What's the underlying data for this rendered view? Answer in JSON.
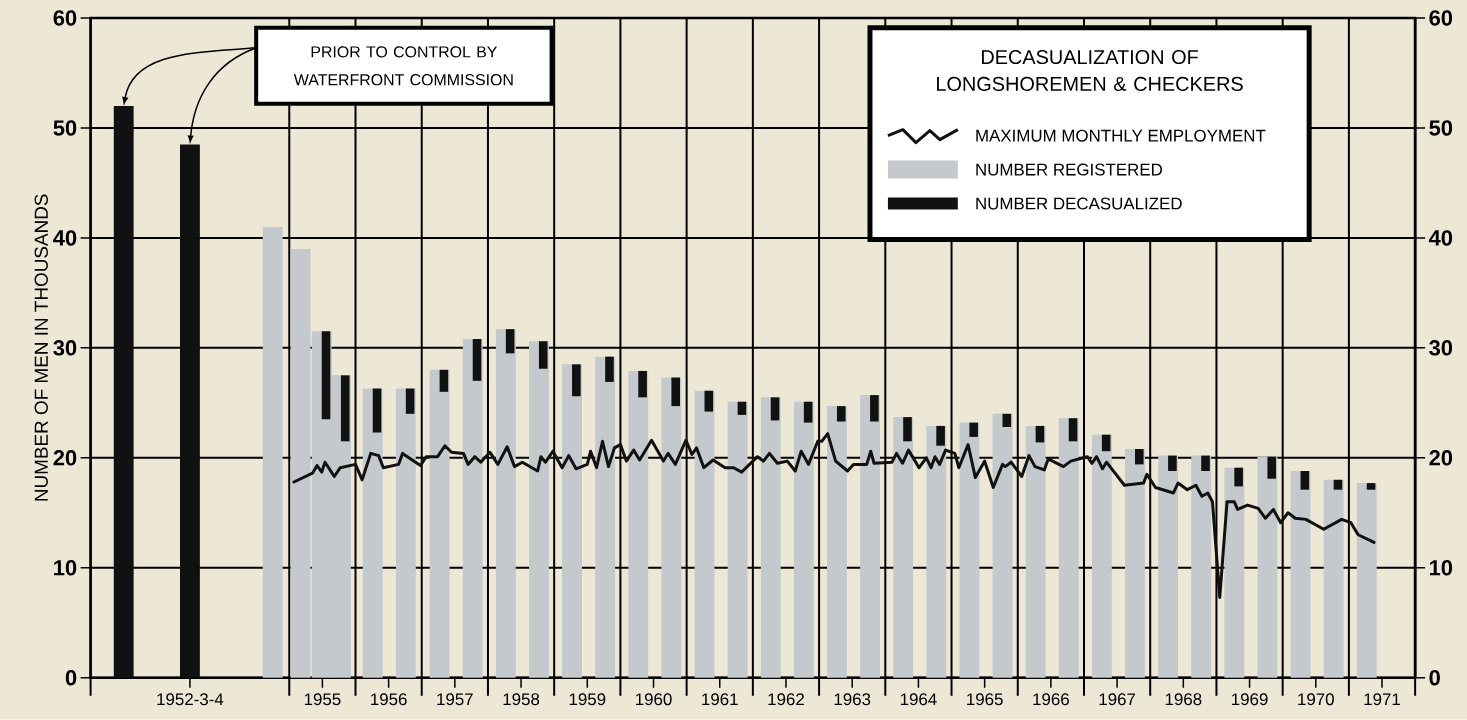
{
  "chart_data": {
    "type": "bar",
    "ylabel": "NUMBER OF MEN IN THOUSANDS",
    "legend_title": "DECASUALIZATION OF LONGSHOREMEN & CHECKERS",
    "annotations": [
      "PRIOR TO CONTROL BY WATERFRONT COMMISSION"
    ],
    "xlim": [
      1952,
      1972
    ],
    "xticks": [
      {
        "value": 1952,
        "label": null
      },
      {
        "value": 1955,
        "label": null
      },
      {
        "value": 1956,
        "label": null
      },
      {
        "value": 1957,
        "label": null
      },
      {
        "value": 1958,
        "label": null
      },
      {
        "value": 1959,
        "label": null
      },
      {
        "value": 1960,
        "label": null
      },
      {
        "value": 1961,
        "label": null
      },
      {
        "value": 1962,
        "label": null
      },
      {
        "value": 1963,
        "label": null
      },
      {
        "value": 1964,
        "label": null
      },
      {
        "value": 1965,
        "label": null
      },
      {
        "value": 1966,
        "label": null
      },
      {
        "value": 1967,
        "label": null
      },
      {
        "value": 1968,
        "label": null
      },
      {
        "value": 1969,
        "label": null
      },
      {
        "value": 1970,
        "label": null
      },
      {
        "value": 1971,
        "label": null
      },
      {
        "value": 1972,
        "label": null
      },
      {
        "value": 1953.5,
        "label": "1952-3-4"
      },
      {
        "value": 1955.5,
        "label": "1955"
      },
      {
        "value": 1956.5,
        "label": "1956"
      },
      {
        "value": 1957.5,
        "label": "1957"
      },
      {
        "value": 1958.5,
        "label": "1958"
      },
      {
        "value": 1959.5,
        "label": "1959"
      },
      {
        "value": 1960.5,
        "label": "1960"
      },
      {
        "value": 1961.5,
        "label": "1961"
      },
      {
        "value": 1962.5,
        "label": "1962"
      },
      {
        "value": 1963.5,
        "label": "1963"
      },
      {
        "value": 1964.5,
        "label": "1964"
      },
      {
        "value": 1965.5,
        "label": "1965"
      },
      {
        "value": 1966.5,
        "label": "1966"
      },
      {
        "value": 1967.5,
        "label": "1967"
      },
      {
        "value": 1968.5,
        "label": "1968"
      },
      {
        "value": 1969.5,
        "label": "1969"
      },
      {
        "value": 1970.5,
        "label": "1970"
      },
      {
        "value": 1971.5,
        "label": "1971"
      }
    ],
    "ylim": [
      0,
      60
    ],
    "yticks": [
      0,
      10,
      20,
      30,
      40,
      50,
      60
    ],
    "y2lim": [
      0,
      60
    ],
    "y2ticks": [
      0,
      10,
      20,
      30,
      40,
      50,
      60
    ],
    "grid": true,
    "legend": "top right",
    "series": [
      {
        "name": "MAXIMUM MONTHLY EMPLOYMENT",
        "type": "line",
        "color": "#111111",
        "x": [
          1955.07,
          1955.35,
          1955.42,
          1955.49,
          1955.54,
          1955.68,
          1955.77,
          1956.0,
          1956.1,
          1956.23,
          1956.35,
          1956.42,
          1956.65,
          1956.71,
          1956.98,
          1957.07,
          1957.24,
          1957.35,
          1957.45,
          1957.63,
          1957.7,
          1957.8,
          1957.89,
          1958.03,
          1958.15,
          1958.29,
          1958.4,
          1958.52,
          1958.75,
          1958.8,
          1958.87,
          1958.98,
          1959.12,
          1959.22,
          1959.33,
          1959.5,
          1959.55,
          1959.64,
          1959.73,
          1959.82,
          1959.91,
          1960.0,
          1960.09,
          1960.2,
          1960.29,
          1960.47,
          1960.65,
          1960.72,
          1960.83,
          1960.99,
          1961.08,
          1961.15,
          1961.26,
          1961.4,
          1961.58,
          1961.71,
          1961.83,
          1962.07,
          1962.16,
          1962.25,
          1962.37,
          1962.52,
          1962.64,
          1962.73,
          1962.84,
          1962.98,
          1963.04,
          1963.13,
          1963.25,
          1963.43,
          1963.52,
          1963.72,
          1963.78,
          1963.83,
          1964.1,
          1964.17,
          1964.26,
          1964.35,
          1964.51,
          1964.62,
          1964.69,
          1964.75,
          1964.82,
          1964.91,
          1965.05,
          1965.11,
          1965.25,
          1965.36,
          1965.5,
          1965.63,
          1965.77,
          1965.81,
          1965.9,
          1966.06,
          1966.17,
          1966.26,
          1966.4,
          1966.46,
          1966.69,
          1966.8,
          1967.05,
          1967.12,
          1967.19,
          1967.28,
          1967.34,
          1967.61,
          1967.9,
          1967.95,
          1968.08,
          1968.35,
          1968.42,
          1968.56,
          1968.69,
          1968.78,
          1968.87,
          1968.94,
          1969.05,
          1969.16,
          1969.27,
          1969.32,
          1969.47,
          1969.63,
          1969.74,
          1969.86,
          1969.97,
          1970.08,
          1970.19,
          1970.35,
          1970.62,
          1970.89,
          1971.03,
          1971.14,
          1971.38
        ],
        "values": [
          17.8,
          18.6,
          19.3,
          18.7,
          19.6,
          18.3,
          19.1,
          19.4,
          18.0,
          20.4,
          20.2,
          19.1,
          19.4,
          20.4,
          19.3,
          20.1,
          20.1,
          21.1,
          20.5,
          20.4,
          19.4,
          20.1,
          19.6,
          20.5,
          19.4,
          21.0,
          19.2,
          19.6,
          18.8,
          20.1,
          19.6,
          20.6,
          19.1,
          20.2,
          19.0,
          19.4,
          20.6,
          19.1,
          21.5,
          19.2,
          20.9,
          21.2,
          19.7,
          20.7,
          19.8,
          21.6,
          19.7,
          20.4,
          19.4,
          21.6,
          20.3,
          20.9,
          19.1,
          19.8,
          19.1,
          19.1,
          18.7,
          20.1,
          19.7,
          20.4,
          19.5,
          19.7,
          18.8,
          20.6,
          19.4,
          21.5,
          21.5,
          22.2,
          19.7,
          18.8,
          19.4,
          19.4,
          20.6,
          19.5,
          19.6,
          20.4,
          19.5,
          20.7,
          19.1,
          20.0,
          19.1,
          20.1,
          19.4,
          20.7,
          20.4,
          19.1,
          21.2,
          18.2,
          19.7,
          17.3,
          19.4,
          19.2,
          19.6,
          18.3,
          20.2,
          19.2,
          18.9,
          19.9,
          19.2,
          19.7,
          20.1,
          19.5,
          20.1,
          19.0,
          19.6,
          17.5,
          17.7,
          18.5,
          17.3,
          16.8,
          17.7,
          17.1,
          17.5,
          16.5,
          16.8,
          16.0,
          7.3,
          16.0,
          16.0,
          15.3,
          15.7,
          15.4,
          14.5,
          15.3,
          14.1,
          15.0,
          14.5,
          14.4,
          13.5,
          14.4,
          14.1,
          13.0,
          12.3
        ]
      },
      {
        "name": "NUMBER REGISTERED",
        "color": "#c3c9cd",
        "x": [
          1952.5,
          1953.5,
          1954.75,
          1955.17,
          1955.49,
          1955.78,
          1956.26,
          1956.76,
          1957.27,
          1957.77,
          1958.27,
          1958.77,
          1959.27,
          1959.77,
          1960.27,
          1960.77,
          1961.27,
          1961.77,
          1962.27,
          1962.77,
          1963.27,
          1963.77,
          1964.27,
          1964.77,
          1965.27,
          1965.77,
          1966.27,
          1966.77,
          1967.27,
          1967.77,
          1968.27,
          1968.77,
          1969.27,
          1969.77,
          1970.27,
          1970.77,
          1971.27
        ],
        "colors": [
          "#111111",
          "#111111",
          "#c3c9cd",
          "#c3c9cd",
          "#c3c9cd",
          "#c3c9cd",
          "#c3c9cd",
          "#c3c9cd",
          "#c3c9cd",
          "#c3c9cd",
          "#c3c9cd",
          "#c3c9cd",
          "#c3c9cd",
          "#c3c9cd",
          "#c3c9cd",
          "#c3c9cd",
          "#c3c9cd",
          "#c3c9cd",
          "#c3c9cd",
          "#c3c9cd",
          "#c3c9cd",
          "#c3c9cd",
          "#c3c9cd",
          "#c3c9cd",
          "#c3c9cd",
          "#c3c9cd",
          "#c3c9cd",
          "#c3c9cd",
          "#c3c9cd",
          "#c3c9cd",
          "#c3c9cd",
          "#c3c9cd",
          "#c3c9cd",
          "#c3c9cd",
          "#c3c9cd",
          "#c3c9cd",
          "#c3c9cd"
        ],
        "values": [
          52,
          48.5,
          41,
          39,
          31.5,
          27.5,
          26.3,
          26.3,
          28.0,
          30.8,
          31.7,
          30.6,
          28.5,
          29.2,
          27.9,
          27.3,
          26.1,
          25.1,
          25.5,
          25.1,
          24.7,
          25.7,
          23.7,
          22.9,
          23.2,
          24.0,
          22.9,
          23.6,
          22.1,
          20.8,
          20.2,
          20.2,
          19.1,
          20.1,
          18.8,
          18.0,
          17.7
        ]
      },
      {
        "name": "NUMBER DECASUALIZED",
        "color": "#111111",
        "x": [
          1955.49,
          1955.78,
          1956.26,
          1956.76,
          1957.27,
          1957.77,
          1958.27,
          1958.77,
          1959.27,
          1959.77,
          1960.27,
          1960.77,
          1961.27,
          1961.77,
          1962.27,
          1962.77,
          1963.27,
          1963.77,
          1964.27,
          1964.77,
          1965.27,
          1965.77,
          1966.27,
          1966.77,
          1967.27,
          1967.77,
          1968.27,
          1968.77,
          1969.27,
          1969.77,
          1970.27,
          1970.77,
          1971.27
        ],
        "base": [
          23.5,
          21.5,
          22.3,
          24.0,
          26.0,
          27.0,
          29.5,
          28.1,
          25.6,
          26.9,
          25.5,
          24.7,
          24.2,
          23.9,
          23.4,
          23.2,
          23.3,
          23.3,
          21.5,
          21.1,
          21.9,
          22.8,
          21.4,
          21.5,
          20.6,
          19.4,
          18.8,
          18.8,
          17.4,
          18.1,
          17.1,
          17.1,
          17.1
        ],
        "values": [
          8.0,
          6.0,
          4.0,
          2.3,
          2.0,
          3.8,
          2.2,
          2.5,
          2.9,
          2.3,
          2.4,
          2.6,
          1.9,
          1.2,
          2.1,
          1.9,
          1.4,
          2.4,
          2.2,
          1.8,
          1.3,
          1.2,
          1.5,
          2.1,
          1.5,
          1.4,
          1.4,
          1.4,
          1.7,
          2.0,
          1.7,
          0.9,
          0.6
        ]
      }
    ]
  }
}
